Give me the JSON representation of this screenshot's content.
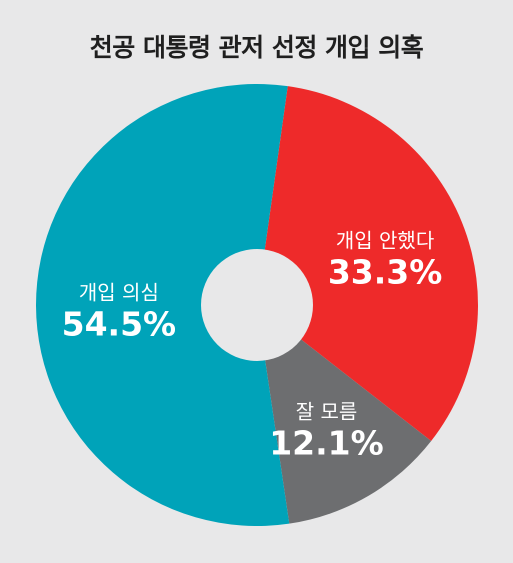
{
  "chart_data": {
    "type": "pie",
    "title": "천공 대통령 관저 선정 개입 의혹",
    "categories": [
      "개입 안했다",
      "잘 모름",
      "개입 의심"
    ],
    "values": [
      33.3,
      12.1,
      54.5
    ],
    "value_labels": [
      "33.3%",
      "12.1%",
      "54.5%"
    ],
    "colors": [
      "#ee2a2a",
      "#6d6e70",
      "#00a3b9"
    ],
    "hole_color": "#e8e8e9",
    "start_angle_deg": 8
  }
}
